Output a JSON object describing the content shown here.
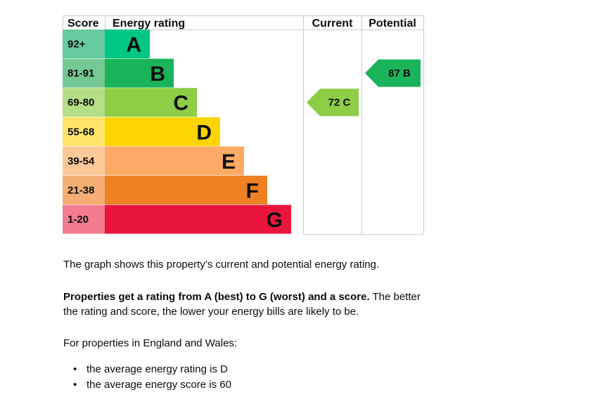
{
  "colors": {
    "border": "#b1b4b6",
    "grid": "#cccccc",
    "text": "#0b0c0c"
  },
  "chart_data": {
    "type": "bar",
    "headers": {
      "score": "Score",
      "rating": "Energy rating",
      "current": "Current",
      "potential": "Potential"
    },
    "bands": [
      {
        "letter": "A",
        "range": "92+",
        "color": "#00c781",
        "score_color": "#67cba0"
      },
      {
        "letter": "B",
        "range": "81-91",
        "color": "#19b459",
        "score_color": "#74c894"
      },
      {
        "letter": "C",
        "range": "69-80",
        "color": "#8dce46",
        "score_color": "#b5de88"
      },
      {
        "letter": "D",
        "range": "55-68",
        "color": "#ffd500",
        "score_color": "#fee46b"
      },
      {
        "letter": "E",
        "range": "39-54",
        "color": "#fcaa65",
        "score_color": "#fdc89a"
      },
      {
        "letter": "F",
        "range": "21-38",
        "color": "#ef8023",
        "score_color": "#f5ae74"
      },
      {
        "letter": "G",
        "range": "1-20",
        "color": "#e9153b",
        "score_color": "#f27b8d"
      }
    ],
    "current": {
      "score": 72,
      "band": "C",
      "label": "72  C"
    },
    "potential": {
      "score": 87,
      "band": "B",
      "label": "87  B"
    }
  },
  "text": {
    "intro": "The graph shows this property’s current and potential energy rating.",
    "rating_bold": "Properties get a rating from A (best) to G (worst) and a score.",
    "rating_rest": " The better the rating and score, the lower your energy bills are likely to be.",
    "region": "For properties in England and Wales:",
    "bullets": [
      "the average energy rating is D",
      "the average energy score is 60"
    ]
  }
}
